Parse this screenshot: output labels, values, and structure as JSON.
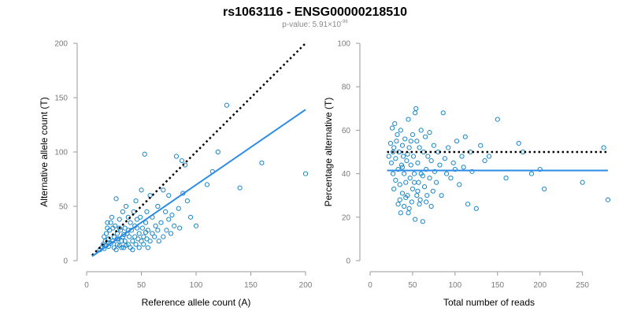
{
  "title": "rs1063116 - ENSG00000218510",
  "subtitle": {
    "prefix": "p-value: 5.91×10",
    "exponent": "-96"
  },
  "colors": {
    "points": "#1a86c6",
    "fit_line": "#2b8be6",
    "reference_line": "#000000",
    "axis": "#9a9a9a"
  },
  "chart_data": [
    {
      "type": "scatter",
      "xlabel": "Reference allele count (A)",
      "ylabel": "Alternative allele count (T)",
      "xlim": [
        0,
        200
      ],
      "ylim": [
        0,
        200
      ],
      "xticks": [
        0,
        50,
        100,
        150,
        200
      ],
      "yticks": [
        0,
        50,
        100,
        150,
        200
      ],
      "fit_line": {
        "x": [
          5,
          200
        ],
        "y": [
          4,
          139
        ]
      },
      "reference_line": {
        "x": [
          5,
          200
        ],
        "y": [
          5,
          200
        ],
        "style": "dotted"
      },
      "points": [
        [
          12,
          10
        ],
        [
          14,
          12
        ],
        [
          15,
          15
        ],
        [
          16,
          11
        ],
        [
          17,
          18
        ],
        [
          18,
          14
        ],
        [
          18,
          25
        ],
        [
          19,
          30
        ],
        [
          19,
          35
        ],
        [
          20,
          20
        ],
        [
          20,
          13
        ],
        [
          21,
          28
        ],
        [
          22,
          16
        ],
        [
          23,
          40
        ],
        [
          24,
          18
        ],
        [
          25,
          12
        ],
        [
          25,
          22
        ],
        [
          26,
          32
        ],
        [
          27,
          57
        ],
        [
          28,
          15
        ],
        [
          28,
          25
        ],
        [
          29,
          20
        ],
        [
          30,
          38
        ],
        [
          30,
          14
        ],
        [
          31,
          28
        ],
        [
          32,
          18
        ],
        [
          33,
          45
        ],
        [
          33,
          22
        ],
        [
          34,
          12
        ],
        [
          35,
          30
        ],
        [
          35,
          18
        ],
        [
          36,
          50
        ],
        [
          37,
          25
        ],
        [
          38,
          15
        ],
        [
          38,
          40
        ],
        [
          39,
          22
        ],
        [
          40,
          35
        ],
        [
          40,
          12
        ],
        [
          41,
          28
        ],
        [
          42,
          18
        ],
        [
          43,
          45
        ],
        [
          44,
          22
        ],
        [
          45,
          15
        ],
        [
          45,
          55
        ],
        [
          46,
          30
        ],
        [
          47,
          20
        ],
        [
          48,
          25
        ],
        [
          49,
          40
        ],
        [
          50,
          18
        ],
        [
          50,
          65
        ],
        [
          51,
          30
        ],
        [
          52,
          22
        ],
        [
          53,
          98
        ],
        [
          54,
          35
        ],
        [
          55,
          20
        ],
        [
          55,
          45
        ],
        [
          56,
          28
        ],
        [
          58,
          60
        ],
        [
          58,
          18
        ],
        [
          60,
          25
        ],
        [
          60,
          40
        ],
        [
          62,
          22
        ],
        [
          63,
          32
        ],
        [
          65,
          28
        ],
        [
          65,
          50
        ],
        [
          66,
          18
        ],
        [
          68,
          35
        ],
        [
          70,
          65
        ],
        [
          70,
          22
        ],
        [
          72,
          45
        ],
        [
          73,
          28
        ],
        [
          75,
          38
        ],
        [
          75,
          60
        ],
        [
          77,
          25
        ],
        [
          78,
          42
        ],
        [
          80,
          32
        ],
        [
          82,
          96
        ],
        [
          84,
          48
        ],
        [
          85,
          30
        ],
        [
          87,
          92
        ],
        [
          88,
          62
        ],
        [
          90,
          88
        ],
        [
          92,
          55
        ],
        [
          95,
          40
        ],
        [
          100,
          32
        ],
        [
          110,
          70
        ],
        [
          115,
          82
        ],
        [
          120,
          100
        ],
        [
          128,
          143
        ],
        [
          140,
          67
        ],
        [
          160,
          90
        ],
        [
          200,
          80
        ],
        [
          16,
          22
        ],
        [
          22,
          35
        ],
        [
          27,
          10
        ],
        [
          32,
          12
        ],
        [
          36,
          14
        ],
        [
          42,
          10
        ],
        [
          48,
          12
        ],
        [
          52,
          15
        ],
        [
          56,
          12
        ],
        [
          30,
          30
        ],
        [
          24,
          30
        ],
        [
          46,
          38
        ],
        [
          38,
          28
        ],
        [
          28,
          20
        ],
        [
          20,
          16
        ],
        [
          34,
          24
        ],
        [
          44,
          32
        ],
        [
          54,
          26
        ]
      ]
    },
    {
      "type": "scatter",
      "xlabel": "Total number of reads",
      "ylabel": "Percentage alternative (T)",
      "xlim": [
        0,
        280
      ],
      "ylim": [
        0,
        100
      ],
      "xticks": [
        0,
        50,
        100,
        150,
        200,
        250
      ],
      "yticks": [
        0,
        20,
        40,
        60,
        80,
        100
      ],
      "fit_line": {
        "x": [
          20,
          280
        ],
        "y": [
          41.5,
          41.5
        ]
      },
      "reference_line": {
        "x": [
          20,
          280
        ],
        "y": [
          50,
          50
        ],
        "style": "dotted"
      },
      "points": [
        [
          22,
          48
        ],
        [
          24,
          54
        ],
        [
          25,
          45
        ],
        [
          26,
          61
        ],
        [
          27,
          40
        ],
        [
          28,
          52
        ],
        [
          29,
          63
        ],
        [
          30,
          47
        ],
        [
          30,
          37
        ],
        [
          31,
          55
        ],
        [
          32,
          58
        ],
        [
          33,
          42
        ],
        [
          34,
          50
        ],
        [
          35,
          35
        ],
        [
          35,
          28
        ],
        [
          36,
          60
        ],
        [
          37,
          44
        ],
        [
          38,
          53
        ],
        [
          38,
          31
        ],
        [
          39,
          48
        ],
        [
          40,
          40
        ],
        [
          40,
          25
        ],
        [
          41,
          56
        ],
        [
          42,
          36
        ],
        [
          43,
          46
        ],
        [
          44,
          30
        ],
        [
          45,
          65
        ],
        [
          45,
          22
        ],
        [
          46,
          52
        ],
        [
          47,
          38
        ],
        [
          48,
          44
        ],
        [
          49,
          27
        ],
        [
          50,
          58
        ],
        [
          50,
          33
        ],
        [
          51,
          48
        ],
        [
          52,
          40
        ],
        [
          53,
          68
        ],
        [
          53,
          19
        ],
        [
          54,
          70
        ],
        [
          55,
          55
        ],
        [
          55,
          30
        ],
        [
          56,
          45
        ],
        [
          57,
          36
        ],
        [
          58,
          52
        ],
        [
          59,
          28
        ],
        [
          60,
          60
        ],
        [
          60,
          40
        ],
        [
          62,
          18
        ],
        [
          63,
          50
        ],
        [
          64,
          34
        ],
        [
          65,
          57
        ],
        [
          66,
          42
        ],
        [
          67,
          30
        ],
        [
          68,
          48
        ],
        [
          70,
          38
        ],
        [
          70,
          59
        ],
        [
          72,
          46
        ],
        [
          74,
          32
        ],
        [
          75,
          53
        ],
        [
          76,
          41
        ],
        [
          78,
          36
        ],
        [
          80,
          50
        ],
        [
          82,
          44
        ],
        [
          84,
          30
        ],
        [
          86,
          68
        ],
        [
          88,
          47
        ],
        [
          90,
          40
        ],
        [
          92,
          52
        ],
        [
          95,
          38
        ],
        [
          98,
          45
        ],
        [
          100,
          42
        ],
        [
          102,
          55
        ],
        [
          105,
          35
        ],
        [
          108,
          48
        ],
        [
          110,
          43
        ],
        [
          112,
          57
        ],
        [
          115,
          26
        ],
        [
          118,
          50
        ],
        [
          120,
          41
        ],
        [
          125,
          24
        ],
        [
          130,
          53
        ],
        [
          135,
          46
        ],
        [
          140,
          48
        ],
        [
          150,
          65
        ],
        [
          160,
          38
        ],
        [
          175,
          54
        ],
        [
          180,
          50
        ],
        [
          190,
          40
        ],
        [
          200,
          42
        ],
        [
          205,
          33
        ],
        [
          250,
          36
        ],
        [
          275,
          52
        ],
        [
          280,
          28
        ],
        [
          28,
          33
        ],
        [
          33,
          26
        ],
        [
          36,
          22
        ],
        [
          42,
          29
        ],
        [
          46,
          24
        ],
        [
          48,
          55
        ],
        [
          52,
          36
        ],
        [
          58,
          26
        ],
        [
          62,
          39
        ],
        [
          38,
          43
        ],
        [
          44,
          49
        ],
        [
          56,
          32
        ],
        [
          66,
          27
        ],
        [
          72,
          25
        ],
        [
          27,
          50
        ]
      ]
    }
  ]
}
